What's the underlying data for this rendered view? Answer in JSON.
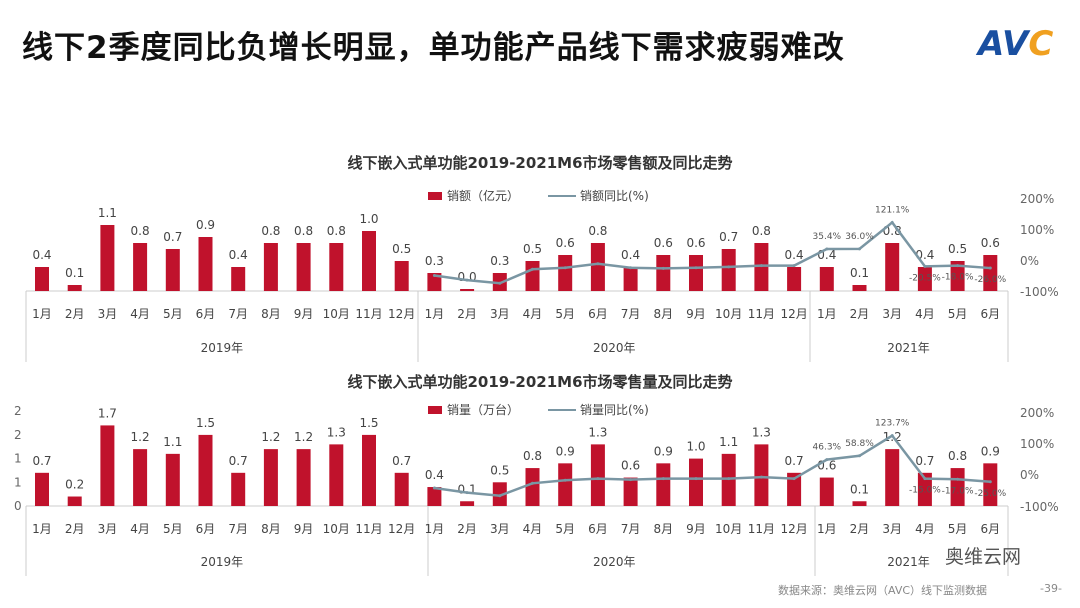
{
  "title": "线下2季度同比负增长明显，单功能产品线下需求疲弱难改",
  "logo": "AVC",
  "footer": "数据来源：奥维云网（AVC）线下监测数据",
  "page_number": "-39-",
  "watermark": "奥维云网",
  "colors": {
    "bar": "#c0122c",
    "line": "#7a96a3"
  },
  "chart_data": [
    {
      "type": "bar+line",
      "title": "线下嵌入式单功能2019-2021M6市场零售额及同比走势",
      "legend": [
        "销额（亿元）",
        "销额同比(%)"
      ],
      "legend_position": "top",
      "categories": [
        "1月",
        "2月",
        "3月",
        "4月",
        "5月",
        "6月",
        "7月",
        "8月",
        "9月",
        "10月",
        "11月",
        "12月",
        "1月",
        "2月",
        "3月",
        "4月",
        "5月",
        "6月",
        "7月",
        "8月",
        "9月",
        "10月",
        "11月",
        "12月",
        "1月",
        "2月",
        "3月",
        "4月",
        "5月",
        "6月"
      ],
      "groups": [
        {
          "label": "2019年",
          "count": 12
        },
        {
          "label": "2020年",
          "count": 12
        },
        {
          "label": "2021年",
          "count": 6
        }
      ],
      "values": [
        0.4,
        0.1,
        1.1,
        0.8,
        0.7,
        0.9,
        0.4,
        0.8,
        0.8,
        0.8,
        1.0,
        0.5,
        0.3,
        0.0,
        0.3,
        0.5,
        0.6,
        0.8,
        0.4,
        0.6,
        0.6,
        0.7,
        0.8,
        0.4,
        0.4,
        0.1,
        0.8,
        0.4,
        0.5,
        0.6
      ],
      "yoy": [
        null,
        null,
        null,
        null,
        null,
        null,
        null,
        null,
        null,
        null,
        null,
        null,
        -50,
        -65,
        -75,
        -30,
        -25,
        -12,
        -25,
        -27,
        -25,
        -22,
        -18,
        -18,
        35.4,
        36.0,
        121.1,
        -20.5,
        -18.0,
        -26.0
      ],
      "yoy_labels": [
        null,
        null,
        null,
        null,
        null,
        null,
        null,
        null,
        null,
        null,
        null,
        null,
        null,
        null,
        null,
        null,
        null,
        null,
        null,
        null,
        null,
        null,
        null,
        null,
        "35.4%",
        "36.0%",
        "121.1%",
        "-20.5%",
        "-18.0%",
        "-26.0%"
      ],
      "y2_ticks": [
        "200%",
        "100%",
        "0%",
        "-100%"
      ],
      "y2lim": [
        -100,
        200
      ],
      "ylim": [
        0,
        1.5
      ]
    },
    {
      "type": "bar+line",
      "title": "线下嵌入式单功能2019-2021M6市场零售量及同比走势",
      "legend": [
        "销量（万台）",
        "销量同比(%)"
      ],
      "legend_position": "top",
      "categories": [
        "1月",
        "2月",
        "3月",
        "4月",
        "5月",
        "6月",
        "7月",
        "8月",
        "9月",
        "10月",
        "11月",
        "12月",
        "1月",
        "2月",
        "3月",
        "4月",
        "5月",
        "6月",
        "7月",
        "8月",
        "9月",
        "10月",
        "11月",
        "12月",
        "1月",
        "2月",
        "3月",
        "4月",
        "5月",
        "6月"
      ],
      "groups": [
        {
          "label": "2019年",
          "count": 12
        },
        {
          "label": "2020年",
          "count": 12
        },
        {
          "label": "2021年",
          "count": 6
        }
      ],
      "values": [
        0.7,
        0.2,
        1.7,
        1.2,
        1.1,
        1.5,
        0.7,
        1.2,
        1.2,
        1.3,
        1.5,
        0.7,
        0.4,
        0.1,
        0.5,
        0.8,
        0.9,
        1.3,
        0.6,
        0.9,
        1.0,
        1.1,
        1.3,
        0.7,
        0.6,
        0.1,
        1.2,
        0.7,
        0.8,
        0.9
      ],
      "yoy": [
        null,
        null,
        null,
        null,
        null,
        null,
        null,
        null,
        null,
        null,
        null,
        null,
        -45,
        -60,
        -70,
        -30,
        -20,
        -15,
        -18,
        -15,
        -15,
        -15,
        -10,
        -15,
        46.3,
        58.8,
        123.7,
        -15.0,
        -17.0,
        -25.0
      ],
      "yoy_labels": [
        null,
        null,
        null,
        null,
        null,
        null,
        null,
        null,
        null,
        null,
        null,
        null,
        null,
        null,
        null,
        null,
        null,
        null,
        null,
        null,
        null,
        null,
        null,
        null,
        "46.3%",
        "58.8%",
        "123.7%",
        "-15.0%",
        "-17.0%",
        "-25.0%"
      ],
      "y_ticks": [
        "2",
        "2",
        "1",
        "1",
        "0"
      ],
      "y2_ticks": [
        "200%",
        "100%",
        "0%",
        "-100%"
      ],
      "y2lim": [
        -100,
        200
      ],
      "ylim": [
        0,
        2
      ]
    }
  ]
}
